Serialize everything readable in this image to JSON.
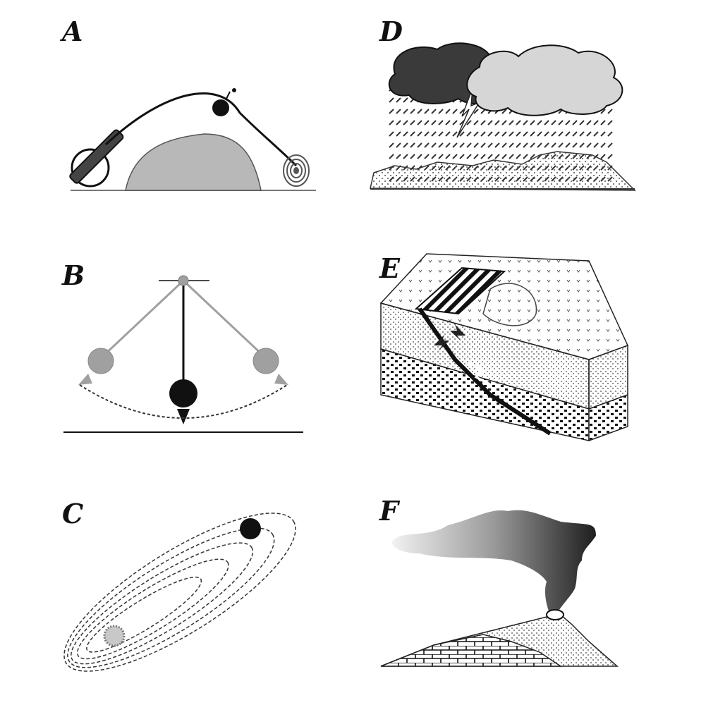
{
  "panels": {
    "a": {
      "label": "A",
      "icons": [
        "cannon-icon",
        "bomb-icon",
        "hill-shape",
        "target-icon"
      ]
    },
    "b": {
      "label": "B",
      "icons": [
        "pendulum-pivot",
        "pendulum-bob",
        "pendulum-arc"
      ]
    },
    "c": {
      "label": "C",
      "icons": [
        "planet-icon",
        "star-icon",
        "spiral-orbit"
      ]
    },
    "d": {
      "label": "D",
      "icons": [
        "storm-cloud-icon",
        "cloud-icon",
        "lightning-icon",
        "rain-lines"
      ]
    },
    "e": {
      "label": "E",
      "icons": [
        "fault-block-diagram",
        "fault-arrow-icon"
      ]
    },
    "f": {
      "label": "F",
      "icons": [
        "volcano-icon",
        "ash-plume"
      ]
    }
  },
  "colors": {
    "ink": "#111111",
    "gray_fill": "#b8b8b8",
    "light_gray": "#d6d6d6",
    "dark_cloud": "#3a3a3a",
    "pendulum_gray": "#a0a0a0"
  }
}
